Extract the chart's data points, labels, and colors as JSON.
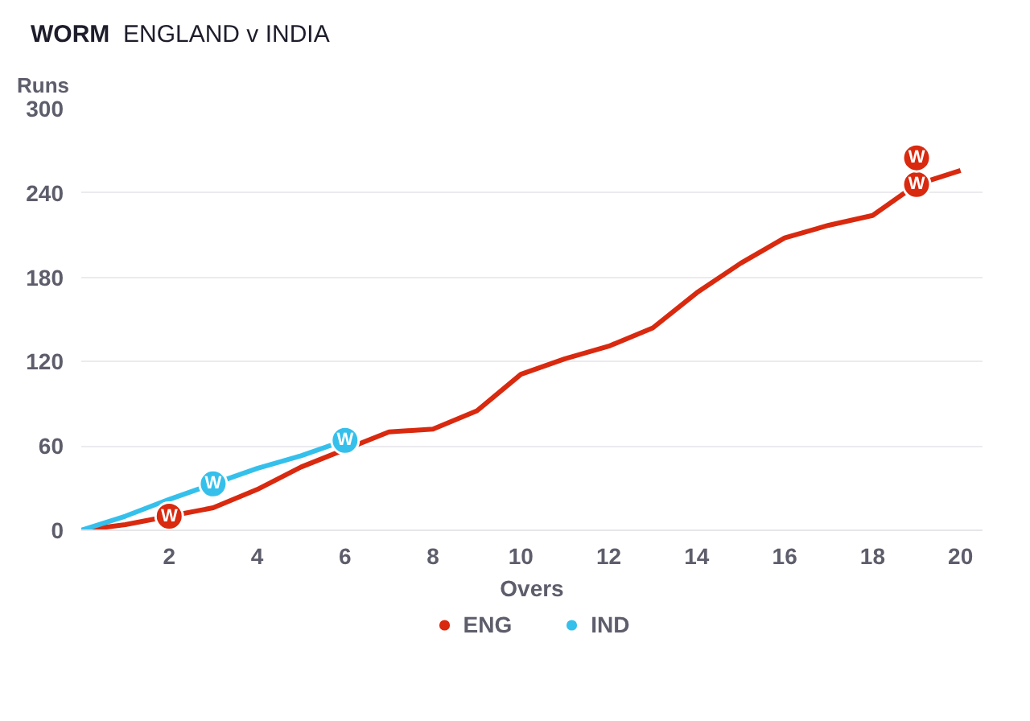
{
  "chart_data": {
    "type": "line",
    "title": "WORM",
    "subtitle": "ENGLAND v INDIA",
    "xlabel": "Overs",
    "ylabel": "Runs",
    "xlim": [
      0,
      20.5
    ],
    "ylim": [
      0,
      300
    ],
    "xticks": [
      2,
      4,
      6,
      8,
      10,
      12,
      14,
      16,
      18,
      20
    ],
    "yticks": [
      0,
      60,
      120,
      180,
      240,
      300
    ],
    "grid": "y",
    "legend": "bottom",
    "marker": "none",
    "line_style": "solid",
    "series": [
      {
        "name": "ENG",
        "color": "#d9290f",
        "x": [
          0,
          1,
          2,
          3,
          4,
          5,
          6,
          7,
          8,
          9,
          10,
          11,
          12,
          13,
          14,
          15,
          16,
          17,
          18,
          19,
          20
        ],
        "values": [
          0,
          4,
          10,
          16,
          29,
          45,
          null,
          70,
          72,
          85,
          111,
          122,
          131,
          144,
          169,
          190,
          208,
          217,
          224,
          246,
          256
        ]
      },
      {
        "name": "IND",
        "color": "#35c0ec",
        "x": [
          0,
          1,
          2,
          3,
          4,
          5,
          6
        ],
        "values": [
          0,
          10,
          22,
          33,
          44,
          53,
          64
        ]
      },
      {
        "type": "scatter",
        "marker": "circle",
        "color": "#d9290f",
        "x": [
          2,
          19,
          19
        ],
        "values": [
          10,
          246,
          265
        ],
        "value_labels": [
          "W",
          "W",
          "W"
        ]
      },
      {
        "type": "scatter",
        "marker": "circle",
        "color": "#35c0ec",
        "x": [
          3,
          6
        ],
        "values": [
          33,
          64
        ],
        "value_labels": [
          "W",
          "W"
        ]
      }
    ]
  }
}
